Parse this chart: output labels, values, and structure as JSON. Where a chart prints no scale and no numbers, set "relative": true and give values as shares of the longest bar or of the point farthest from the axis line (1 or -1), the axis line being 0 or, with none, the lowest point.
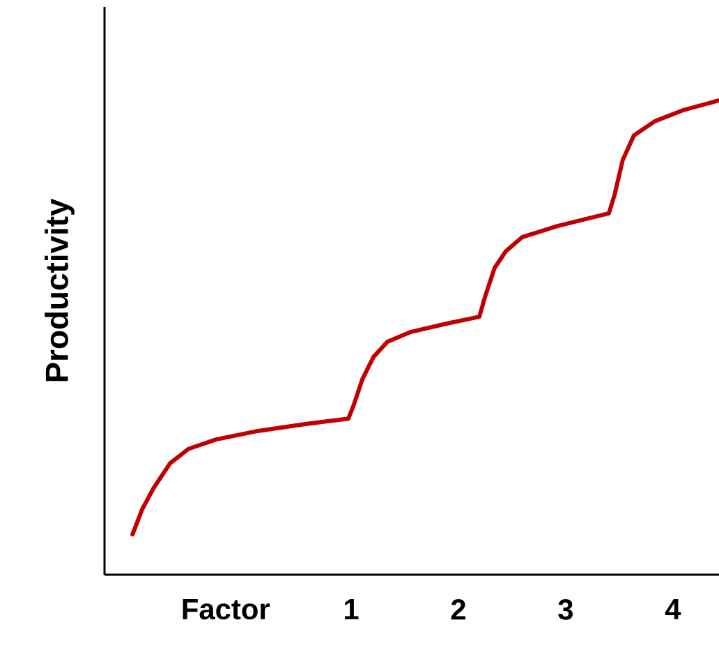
{
  "chart_data": {
    "type": "line",
    "relative": true,
    "xlabel": "Factor",
    "ylabel": "Productivity",
    "xlim": [
      -1.3,
      4.43
    ],
    "xticks": [
      1,
      2,
      3,
      4
    ],
    "marker": "none",
    "line_style": "solid",
    "series": [
      {
        "color": "#c00000",
        "x": [
          -1.039,
          -0.948,
          -0.844,
          -0.688,
          -0.519,
          -0.26,
          0.13,
          0.584,
          0.974,
          1.026,
          1.104,
          1.208,
          1.338,
          1.558,
          1.883,
          2.195,
          2.247,
          2.338,
          2.442,
          2.597,
          2.922,
          3.403,
          3.455,
          3.532,
          3.636,
          3.831,
          4.091,
          4.429
        ],
        "values": [
          0.085,
          0.138,
          0.182,
          0.235,
          0.265,
          0.285,
          0.303,
          0.318,
          0.329,
          0.359,
          0.412,
          0.459,
          0.491,
          0.512,
          0.529,
          0.544,
          0.585,
          0.647,
          0.682,
          0.712,
          0.735,
          0.762,
          0.8,
          0.874,
          0.926,
          0.956,
          0.979,
          1.0
        ]
      }
    ]
  }
}
